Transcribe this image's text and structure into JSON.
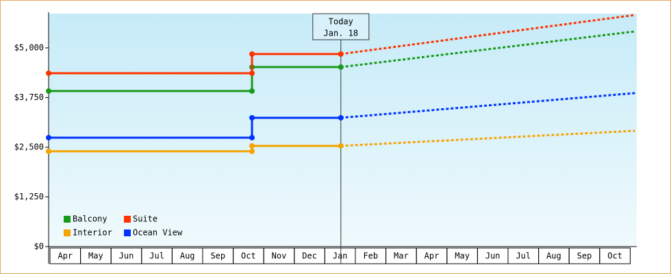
{
  "chart_data": {
    "type": "line",
    "x": [
      0,
      6.66,
      6.66,
      9.57,
      19.2
    ],
    "series": [
      {
        "name": "Balcony",
        "color": "#1a9a1a",
        "values": [
          3914,
          3914,
          4517,
          4517,
          5414
        ]
      },
      {
        "name": "Suite",
        "color": "#ff3300",
        "values": [
          4362,
          4362,
          4845,
          4845,
          5828
        ]
      },
      {
        "name": "Interior",
        "color": "#f5a300",
        "values": [
          2397,
          2397,
          2534,
          2534,
          2914
        ]
      },
      {
        "name": "Ocean View",
        "color": "#0033ff",
        "values": [
          2741,
          2741,
          3241,
          3241,
          3862
        ]
      }
    ],
    "annotation": {
      "text": [
        "Today",
        "Jan. 18"
      ],
      "x": 9.57
    },
    "xlim": [
      0,
      19.26
    ],
    "xticks": [
      {
        "value": 0.5,
        "label": "Apr"
      },
      {
        "value": 1.5,
        "label": "May"
      },
      {
        "value": 2.5,
        "label": "Jun"
      },
      {
        "value": 3.5,
        "label": "Jul"
      },
      {
        "value": 4.5,
        "label": "Aug"
      },
      {
        "value": 5.5,
        "label": "Sep"
      },
      {
        "value": 6.5,
        "label": "Oct"
      },
      {
        "value": 7.5,
        "label": "Nov"
      },
      {
        "value": 8.5,
        "label": "Dec"
      },
      {
        "value": 9.5,
        "label": "Jan"
      },
      {
        "value": 10.5,
        "label": "Feb"
      },
      {
        "value": 11.5,
        "label": "Mar"
      },
      {
        "value": 12.5,
        "label": "Apr"
      },
      {
        "value": 13.5,
        "label": "May"
      },
      {
        "value": 14.5,
        "label": "Jun"
      },
      {
        "value": 15.5,
        "label": "Jul"
      },
      {
        "value": 16.5,
        "label": "Aug"
      },
      {
        "value": 17.5,
        "label": "Sep"
      },
      {
        "value": 18.5,
        "label": "Oct"
      }
    ],
    "ylim": [
      0,
      5860
    ],
    "yticks": [
      {
        "value": 0,
        "label": "$0"
      },
      {
        "value": 1250,
        "label": "$1,250"
      },
      {
        "value": 2500,
        "label": "$2,500"
      },
      {
        "value": 3750,
        "label": "$3,750"
      },
      {
        "value": 5000,
        "label": "$5,000"
      }
    ],
    "legend": "lower-left"
  }
}
